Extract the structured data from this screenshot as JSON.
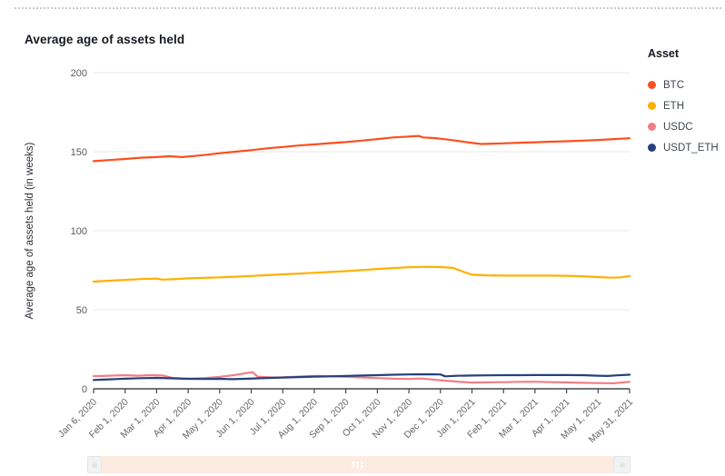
{
  "chart_data": {
    "type": "line",
    "title": "Average age of assets held",
    "xlabel": "",
    "ylabel": "Average age of assets held (in weeks)",
    "ylim": [
      0,
      200
    ],
    "y_ticks": [
      0,
      50,
      100,
      150,
      200
    ],
    "grid": "horizontal",
    "legend_title": "Asset",
    "legend_position": "right",
    "categories": [
      "Jan 6, 2020",
      "Feb 1, 2020",
      "Mar 1, 2020",
      "Apr 1, 2020",
      "May 1, 2020",
      "Jun 1, 2020",
      "Jul 1, 2020",
      "Aug 1, 2020",
      "Sep 1, 2020",
      "Oct 1, 2020",
      "Nov 1, 2020",
      "Dec 1, 2020",
      "Jan 1, 2021",
      "Feb 1, 2021",
      "Mar 1, 2021",
      "Apr 1, 2021",
      "May 1, 2021",
      "May 31, 2021"
    ],
    "series": [
      {
        "name": "BTC",
        "color": "#fc4f1f",
        "values": [
          144,
          145.4,
          146.6,
          147.2,
          149,
          151,
          153,
          154.6,
          156.1,
          158,
          159.6,
          158.2,
          155.5,
          155.3,
          156,
          156.6,
          157.4,
          158.5
        ],
        "points": [
          [
            0,
            144
          ],
          [
            0.5,
            144.7
          ],
          [
            1,
            145.4
          ],
          [
            1.5,
            146.2
          ],
          [
            2,
            146.6
          ],
          [
            2.4,
            147.1
          ],
          [
            2.8,
            146.6
          ],
          [
            3.2,
            147.3
          ],
          [
            3.6,
            148.1
          ],
          [
            4,
            149
          ],
          [
            4.5,
            150
          ],
          [
            5,
            151
          ],
          [
            5.5,
            152.1
          ],
          [
            6,
            153
          ],
          [
            6.5,
            153.9
          ],
          [
            7,
            154.6
          ],
          [
            7.5,
            155.4
          ],
          [
            8,
            156.1
          ],
          [
            8.5,
            157
          ],
          [
            9,
            158
          ],
          [
            9.5,
            159
          ],
          [
            10,
            159.6
          ],
          [
            10.3,
            160
          ],
          [
            10.45,
            159
          ],
          [
            10.8,
            158.6
          ],
          [
            11,
            158.2
          ],
          [
            11.5,
            157
          ],
          [
            12,
            155.5
          ],
          [
            12.3,
            154.9
          ],
          [
            12.7,
            155.1
          ],
          [
            13,
            155.3
          ],
          [
            13.5,
            155.7
          ],
          [
            14,
            156
          ],
          [
            14.5,
            156.3
          ],
          [
            15,
            156.6
          ],
          [
            15.5,
            157
          ],
          [
            16,
            157.4
          ],
          [
            16.5,
            158
          ],
          [
            17,
            158.5
          ]
        ]
      },
      {
        "name": "ETH",
        "color": "#ffb000",
        "values": [
          67.8,
          68.9,
          69.7,
          69.9,
          70.5,
          71.4,
          72.4,
          73.4,
          74.4,
          75.8,
          76.9,
          77,
          72.2,
          71.6,
          71.6,
          71.5,
          70.7,
          71.3
        ],
        "points": [
          [
            0,
            67.8
          ],
          [
            0.5,
            68.4
          ],
          [
            1,
            68.9
          ],
          [
            1.5,
            69.4
          ],
          [
            2,
            69.7
          ],
          [
            2.2,
            69.1
          ],
          [
            2.5,
            69.3
          ],
          [
            3,
            69.9
          ],
          [
            3.5,
            70.2
          ],
          [
            4,
            70.5
          ],
          [
            4.5,
            70.9
          ],
          [
            5,
            71.4
          ],
          [
            5.5,
            71.9
          ],
          [
            6,
            72.4
          ],
          [
            6.5,
            72.9
          ],
          [
            7,
            73.4
          ],
          [
            7.5,
            73.9
          ],
          [
            8,
            74.4
          ],
          [
            8.5,
            75.1
          ],
          [
            9,
            75.8
          ],
          [
            9.5,
            76.4
          ],
          [
            10,
            76.9
          ],
          [
            10.5,
            77.2
          ],
          [
            11,
            77
          ],
          [
            11.4,
            76.5
          ],
          [
            11.8,
            73.5
          ],
          [
            12,
            72.2
          ],
          [
            12.5,
            71.8
          ],
          [
            13,
            71.6
          ],
          [
            13.5,
            71.6
          ],
          [
            14,
            71.6
          ],
          [
            14.5,
            71.6
          ],
          [
            15,
            71.5
          ],
          [
            15.5,
            71.2
          ],
          [
            16,
            70.7
          ],
          [
            16.4,
            70.3
          ],
          [
            16.7,
            70.5
          ],
          [
            17,
            71.3
          ]
        ]
      },
      {
        "name": "USDC",
        "color": "#f17e85",
        "values": [
          8,
          8.6,
          8.4,
          6.3,
          7.5,
          10.2,
          7.3,
          8.1,
          7.6,
          6.8,
          6.2,
          5.4,
          3.9,
          4.2,
          4.5,
          4,
          3.6,
          4.4
        ],
        "points": [
          [
            0,
            8
          ],
          [
            0.5,
            8.3
          ],
          [
            1,
            8.6
          ],
          [
            1.4,
            8.3
          ],
          [
            1.8,
            8.6
          ],
          [
            2.2,
            8.4
          ],
          [
            2.5,
            6.9
          ],
          [
            3,
            6.3
          ],
          [
            3.5,
            6.8
          ],
          [
            4,
            7.5
          ],
          [
            4.5,
            8.8
          ],
          [
            4.9,
            10.1
          ],
          [
            5.05,
            10.4
          ],
          [
            5.2,
            7.7
          ],
          [
            5.6,
            7.2
          ],
          [
            6,
            7.3
          ],
          [
            6.5,
            7.7
          ],
          [
            7,
            8.1
          ],
          [
            7.5,
            8
          ],
          [
            8,
            7.6
          ],
          [
            8.5,
            7.2
          ],
          [
            9,
            6.8
          ],
          [
            9.5,
            6.4
          ],
          [
            10,
            6.2
          ],
          [
            10.4,
            6.5
          ],
          [
            11,
            5.4
          ],
          [
            11.5,
            4.6
          ],
          [
            12,
            3.9
          ],
          [
            12.5,
            4.1
          ],
          [
            13,
            4.2
          ],
          [
            13.5,
            4.4
          ],
          [
            14,
            4.5
          ],
          [
            14.5,
            4.2
          ],
          [
            15,
            4
          ],
          [
            15.5,
            3.8
          ],
          [
            16,
            3.6
          ],
          [
            16.5,
            3.5
          ],
          [
            17,
            4.4
          ]
        ]
      },
      {
        "name": "USDT_ETH",
        "color": "#26407d",
        "values": [
          5.6,
          6.4,
          6.9,
          6.3,
          6.3,
          6.6,
          7.1,
          7.7,
          8.1,
          8.6,
          9.1,
          9.1,
          8.4,
          8.6,
          8.7,
          8.7,
          8.3,
          8.9
        ],
        "points": [
          [
            0,
            5.6
          ],
          [
            0.5,
            6
          ],
          [
            1,
            6.4
          ],
          [
            1.5,
            6.7
          ],
          [
            2,
            6.9
          ],
          [
            2.5,
            6.6
          ],
          [
            3,
            6.3
          ],
          [
            3.5,
            6.2
          ],
          [
            4,
            6.3
          ],
          [
            4.4,
            6.1
          ],
          [
            4.8,
            6.3
          ],
          [
            5.2,
            6.6
          ],
          [
            5.6,
            6.9
          ],
          [
            6,
            7.1
          ],
          [
            6.5,
            7.4
          ],
          [
            7,
            7.7
          ],
          [
            7.5,
            7.9
          ],
          [
            8,
            8.1
          ],
          [
            8.5,
            8.4
          ],
          [
            9,
            8.6
          ],
          [
            9.5,
            8.9
          ],
          [
            10,
            9.1
          ],
          [
            10.5,
            9.2
          ],
          [
            11,
            9.1
          ],
          [
            11.15,
            7.9
          ],
          [
            11.5,
            8.2
          ],
          [
            12,
            8.4
          ],
          [
            12.5,
            8.5
          ],
          [
            13,
            8.6
          ],
          [
            13.5,
            8.6
          ],
          [
            14,
            8.7
          ],
          [
            14.5,
            8.7
          ],
          [
            15,
            8.7
          ],
          [
            15.5,
            8.6
          ],
          [
            16,
            8.3
          ],
          [
            16.3,
            8.1
          ],
          [
            16.6,
            8.5
          ],
          [
            17,
            8.9
          ]
        ]
      }
    ]
  },
  "colors": {
    "axis_line": "#424650",
    "gridline": "#e9e9e9",
    "tick_label": "#666666",
    "y_axis_title": "#2b2f36"
  },
  "scrollbar": {
    "track_color": "#fcebe1",
    "handle_color": "#f1f2f3",
    "handle_border": "#e4e6e9",
    "handle_nub_color": "#e3e4e6",
    "grip_color": "#ffffff"
  }
}
